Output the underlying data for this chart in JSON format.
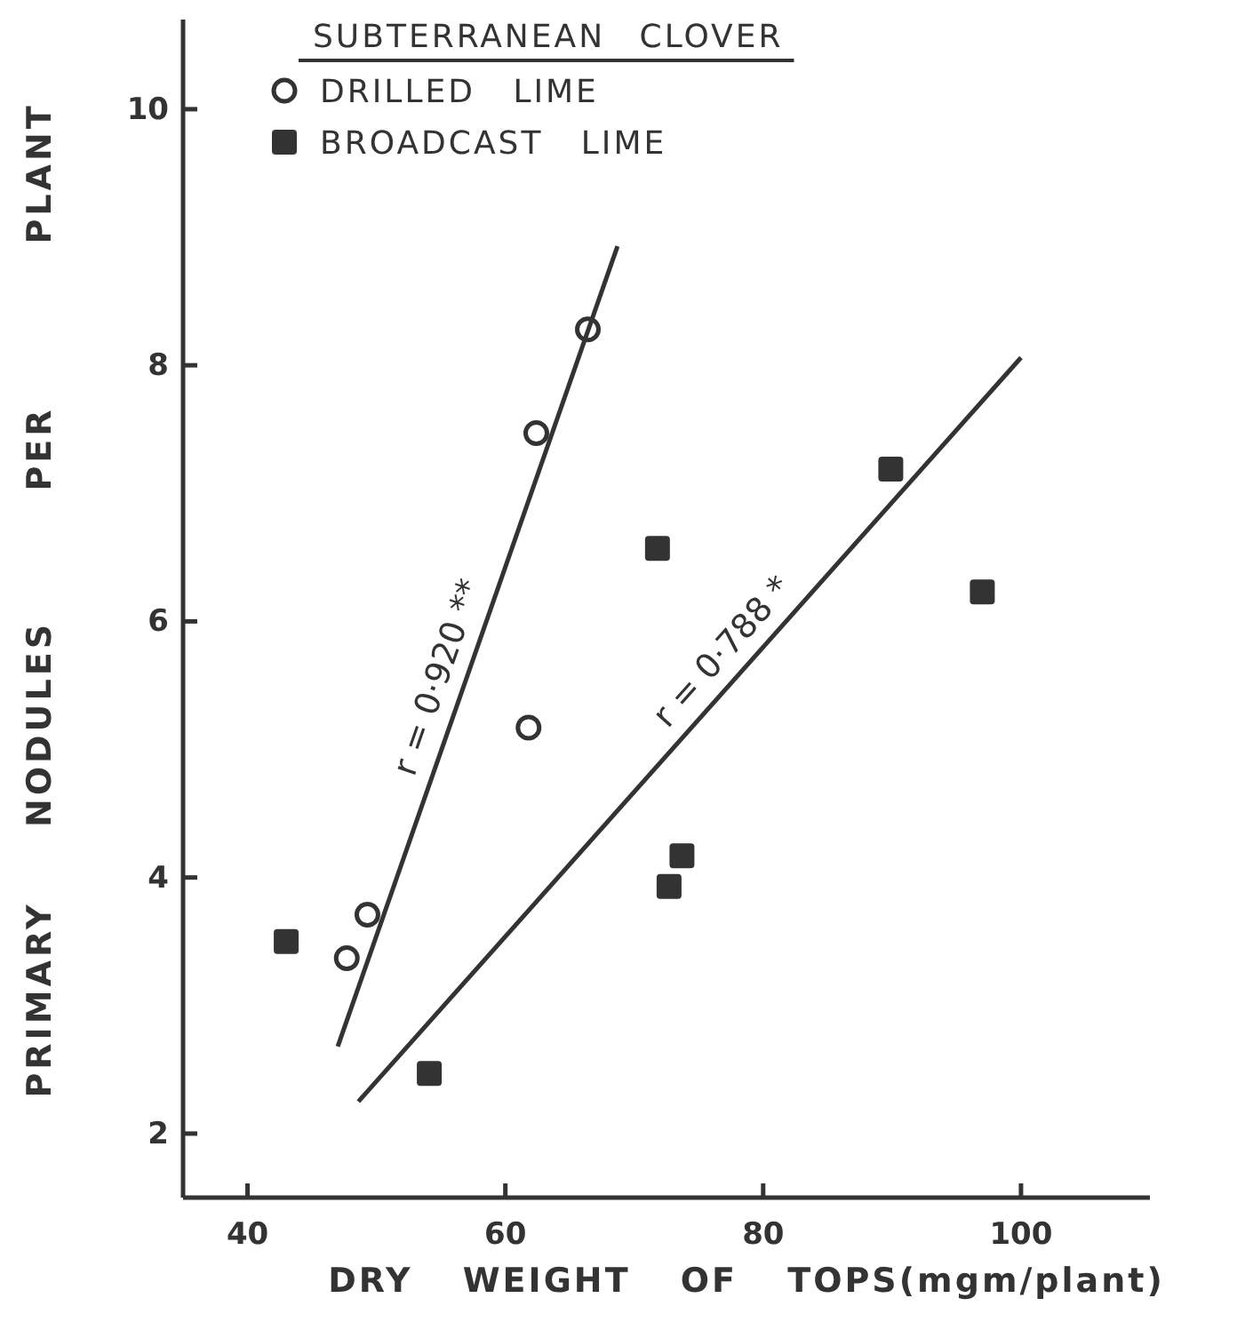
{
  "chart_data": {
    "type": "scatter",
    "xlabel": "DRY WEIGHT OF TOPS(mgm/plant)",
    "ylabel": "PRIMARY NODULES PER PLANT",
    "legend_title": "SUBTERRANEAN CLOVER",
    "legend": "top left",
    "xlim": [
      35,
      110
    ],
    "xticks": [
      40,
      60,
      80,
      100
    ],
    "ylim": [
      1.5,
      10.7
    ],
    "yticks": [
      2,
      4,
      6,
      8,
      10
    ],
    "series": [
      {
        "name": "DRILLED LIME",
        "color": "#333333",
        "marker": "circle",
        "x": [
          66.4,
          62.4,
          61.8,
          49.3,
          47.7
        ],
        "values": [
          8.28,
          7.47,
          5.17,
          3.71,
          3.37
        ]
      },
      {
        "name": "BROADCAST LIME",
        "color": "#333333",
        "marker": "square",
        "x": [
          89.9,
          71.8,
          97.0,
          73.7,
          72.7,
          43.0,
          54.1
        ],
        "values": [
          7.19,
          6.57,
          6.23,
          4.17,
          3.93,
          3.5,
          2.47
        ]
      },
      {
        "type": "line",
        "color": "#333333",
        "x": [
          47.0,
          68.7
        ],
        "values": [
          2.68,
          8.93
        ]
      },
      {
        "type": "line",
        "color": "#333333",
        "x": [
          48.6,
          100.0
        ],
        "values": [
          2.25,
          8.06
        ]
      }
    ],
    "annotations": [
      "r = 0·920 **",
      "r = 0·788 *"
    ]
  }
}
